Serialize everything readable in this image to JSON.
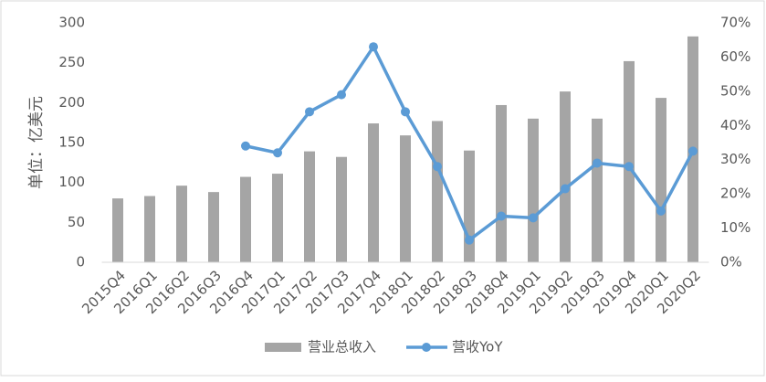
{
  "chart_data": {
    "type": "bar",
    "y_label": "单位：亿美元",
    "categories": [
      "2015Q4",
      "2016Q1",
      "2016Q2",
      "2016Q3",
      "2016Q4",
      "2017Q1",
      "2017Q2",
      "2017Q3",
      "2017Q4",
      "2018Q1",
      "2018Q2",
      "2018Q3",
      "2018Q4",
      "2019Q1",
      "2019Q2",
      "2019Q3",
      "2019Q4",
      "2020Q1",
      "2020Q2"
    ],
    "series": [
      {
        "name": "营业总收入",
        "type": "bar",
        "color": "#a5a5a5",
        "values": [
          80,
          83,
          96,
          88,
          107,
          111,
          139,
          132,
          174,
          159,
          177,
          140,
          197,
          180,
          214,
          180,
          252,
          206,
          283
        ]
      },
      {
        "name": "营收YoY",
        "type": "line",
        "axis": "y2",
        "color": "#5b9bd5",
        "values": [
          null,
          null,
          null,
          null,
          34,
          32,
          44,
          49,
          63,
          44,
          28,
          6.5,
          13.5,
          13,
          21.5,
          29,
          28,
          15,
          32.5
        ]
      }
    ],
    "ylim": [
      0,
      300
    ],
    "yticks": [
      0,
      50,
      100,
      150,
      200,
      250,
      300
    ],
    "y2lim": [
      0,
      70
    ],
    "y2ticks": [
      {
        "value": 0,
        "label": "0%"
      },
      {
        "value": 10,
        "label": "10%"
      },
      {
        "value": 20,
        "label": "20%"
      },
      {
        "value": 30,
        "label": "30%"
      },
      {
        "value": 40,
        "label": "40%"
      },
      {
        "value": 50,
        "label": "50%"
      },
      {
        "value": 60,
        "label": "60%"
      },
      {
        "value": 70,
        "label": "70%"
      }
    ],
    "legend": "bottom"
  }
}
